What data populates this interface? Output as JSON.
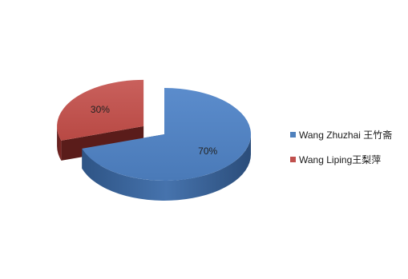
{
  "chart_data": {
    "type": "pie",
    "style": "3d-exploded",
    "title": "",
    "categories": [
      "Wang Zhuzhai 王竹斋",
      "Wang Liping王梨萍"
    ],
    "values": [
      70,
      30
    ],
    "value_labels": [
      "70%",
      "30%"
    ],
    "colors": [
      "#4f81bd",
      "#c0504d"
    ],
    "legend_position": "right"
  },
  "legend": {
    "items": [
      {
        "label": "Wang Zhuzhai 王竹斋",
        "color": "#4f81bd"
      },
      {
        "label": "Wang Liping王梨萍",
        "color": "#c0504d"
      }
    ]
  }
}
